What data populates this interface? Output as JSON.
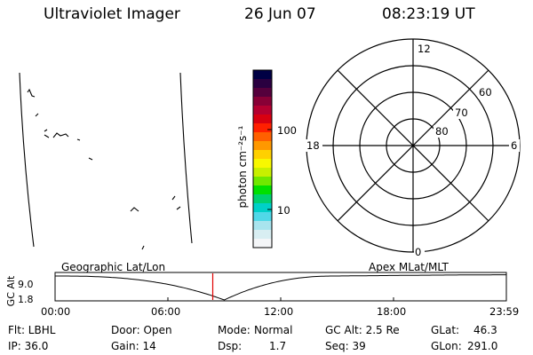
{
  "header": {
    "instrument": "Ultraviolet Imager",
    "date": "26 Jun 07",
    "time": "08:23:19 UT"
  },
  "colorbar": {
    "unit_label": "photon cm⁻²s⁻¹",
    "ticks": [
      "100",
      "10"
    ],
    "colors": [
      "#000044",
      "#2a0040",
      "#55003c",
      "#880036",
      "#b40030",
      "#d80010",
      "#ff2000",
      "#ff6000",
      "#ff9800",
      "#ffd000",
      "#f8f800",
      "#c8f000",
      "#70e800",
      "#00e000",
      "#00d070",
      "#00d0c8",
      "#50d8e8",
      "#a8e4ee",
      "#d8eef2",
      "#f4f6f8"
    ]
  },
  "polar_plot": {
    "mlt_labels": {
      "top": "12",
      "left": "18",
      "right": "6",
      "bottom": "0"
    },
    "lat_labels": [
      "80",
      "70",
      "60"
    ]
  },
  "timeline": {
    "ylabel": "GC Alt",
    "ymax": "9.0",
    "ymin": "1.8",
    "left_title": "Geographic Lat/Lon",
    "right_title": "Apex MLat/MLT",
    "xticks": [
      "00:00",
      "06:00",
      "12:00",
      "18:00",
      "23:59"
    ],
    "current_time_fraction": 0.3495
  },
  "info": {
    "flt": "Flt: LBHL",
    "door": "Door: Open",
    "mode_key": "Mode:",
    "mode_val": "Normal",
    "gcalt": "GC Alt: 2.5 Re",
    "glat_key": "GLat:",
    "glat_val": "46.3",
    "ip": "IP: 36.0",
    "gain": "Gain: 14",
    "dsp_key": "Dsp:",
    "dsp_val": "1.7",
    "seq": "Seq: 39",
    "glon_key": "GLon:",
    "glon_val": "291.0"
  }
}
